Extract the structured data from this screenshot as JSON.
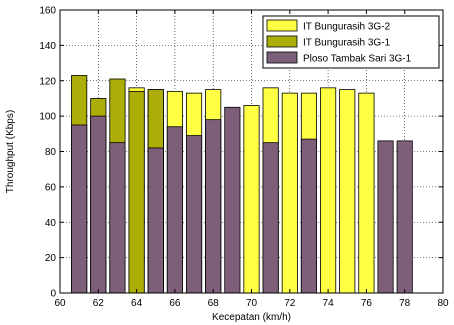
{
  "chart_data": {
    "type": "bar",
    "xlabel": "Kecepatan (km/h)",
    "ylabel": "Throughput (Kbps)",
    "xlim": [
      60,
      80
    ],
    "ylim": [
      0,
      160
    ],
    "xticks": [
      60,
      62,
      64,
      66,
      68,
      70,
      72,
      74,
      76,
      78,
      80
    ],
    "yticks": [
      0,
      20,
      40,
      60,
      80,
      100,
      120,
      140,
      160
    ],
    "grid": true,
    "grid_style": "dotted",
    "legend_position": "top-right",
    "bar_width": 0.8,
    "series": [
      {
        "name": "IT Bungurasih 3G-2",
        "color": "#ffff44",
        "points": [
          {
            "x": 64,
            "y": 116
          },
          {
            "x": 65,
            "y": 115
          },
          {
            "x": 66,
            "y": 114
          },
          {
            "x": 67,
            "y": 113
          },
          {
            "x": 68,
            "y": 115
          },
          {
            "x": 70,
            "y": 106
          },
          {
            "x": 71,
            "y": 116
          },
          {
            "x": 72,
            "y": 113
          },
          {
            "x": 73,
            "y": 113
          },
          {
            "x": 74,
            "y": 116
          },
          {
            "x": 75,
            "y": 115
          },
          {
            "x": 76,
            "y": 113
          }
        ]
      },
      {
        "name": "IT Bungurasih 3G-1",
        "color": "#adad08",
        "points": [
          {
            "x": 61,
            "y": 123
          },
          {
            "x": 62,
            "y": 110
          },
          {
            "x": 63,
            "y": 121
          },
          {
            "x": 64,
            "y": 114
          },
          {
            "x": 65,
            "y": 115
          }
        ]
      },
      {
        "name": "Ploso Tambak Sari 3G-1",
        "color": "#7e5f7a",
        "points": [
          {
            "x": 61,
            "y": 95
          },
          {
            "x": 62,
            "y": 100
          },
          {
            "x": 63,
            "y": 85
          },
          {
            "x": 65,
            "y": 82
          },
          {
            "x": 66,
            "y": 94
          },
          {
            "x": 67,
            "y": 89
          },
          {
            "x": 68,
            "y": 98
          },
          {
            "x": 69,
            "y": 105
          },
          {
            "x": 71,
            "y": 85
          },
          {
            "x": 73,
            "y": 87
          },
          {
            "x": 77,
            "y": 86
          },
          {
            "x": 78,
            "y": 86
          }
        ]
      }
    ]
  }
}
